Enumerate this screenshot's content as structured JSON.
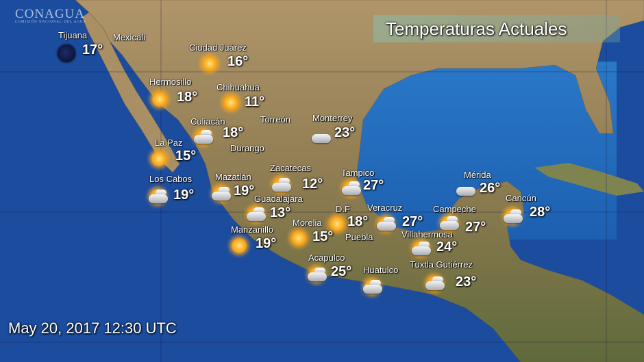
{
  "logo": {
    "name": "CONAGUA",
    "subtitle": "COMISIÓN NACIONAL DEL AGUA"
  },
  "title": "Temperaturas Actuales",
  "timestamp": "May 20, 2017 12:30 UTC",
  "colors": {
    "ocean": "#1b4c9e",
    "land": "#a3895e",
    "text": "#ffffff"
  },
  "cities": [
    {
      "name": "Tijuana",
      "temp": "17°",
      "icon": "night-icon"
    },
    {
      "name": "Mexicali",
      "temp": null,
      "icon": null
    },
    {
      "name": "Ciudad Juárez",
      "temp": "16°",
      "icon": "sun-icon"
    },
    {
      "name": "Hermosillo",
      "temp": "18°",
      "icon": "sun-icon"
    },
    {
      "name": "Chihuahua",
      "temp": "11°",
      "icon": "sun-icon"
    },
    {
      "name": "Culiacán",
      "temp": "18°",
      "icon": "partly-cloudy-icon"
    },
    {
      "name": "Torreón",
      "temp": null,
      "icon": null
    },
    {
      "name": "Monterrey",
      "temp": "23°",
      "icon": "cloud-icon"
    },
    {
      "name": "Durango",
      "temp": null,
      "icon": null
    },
    {
      "name": "La Paz",
      "temp": "15°",
      "icon": "sun-icon"
    },
    {
      "name": "Zacatecas",
      "temp": "12°",
      "icon": "partly-cloudy-icon"
    },
    {
      "name": "Tampico",
      "temp": "27°",
      "icon": "partly-cloudy-icon"
    },
    {
      "name": "Mérida",
      "temp": "26°",
      "icon": "cloud-icon"
    },
    {
      "name": "Los Cabos",
      "temp": "19°",
      "icon": "partly-cloudy-icon"
    },
    {
      "name": "Mazatlán",
      "temp": "19°",
      "icon": "partly-cloudy-icon"
    },
    {
      "name": "Guadalajara",
      "temp": "13°",
      "icon": "partly-cloudy-icon"
    },
    {
      "name": "Cancún",
      "temp": "28°",
      "icon": "partly-cloudy-icon"
    },
    {
      "name": "D.F",
      "temp": "18°",
      "icon": "sun-icon"
    },
    {
      "name": "Veracruz",
      "temp": "27°",
      "icon": "partly-cloudy-icon"
    },
    {
      "name": "Campeche",
      "temp": "27°",
      "icon": "partly-cloudy-icon"
    },
    {
      "name": "Manzanillo",
      "temp": "19°",
      "icon": "sun-icon"
    },
    {
      "name": "Morelia",
      "temp": "15°",
      "icon": "sun-icon"
    },
    {
      "name": "Puebla",
      "temp": null,
      "icon": null
    },
    {
      "name": "Villahermosa",
      "temp": "24°",
      "icon": "partly-cloudy-icon"
    },
    {
      "name": "Acapulco",
      "temp": "25°",
      "icon": "partly-cloudy-icon"
    },
    {
      "name": "Huatulco",
      "temp": null,
      "icon": "partly-cloudy-icon"
    },
    {
      "name": "Tuxtla Gutiérrez",
      "temp": "23°",
      "icon": "partly-cloudy-icon"
    }
  ]
}
